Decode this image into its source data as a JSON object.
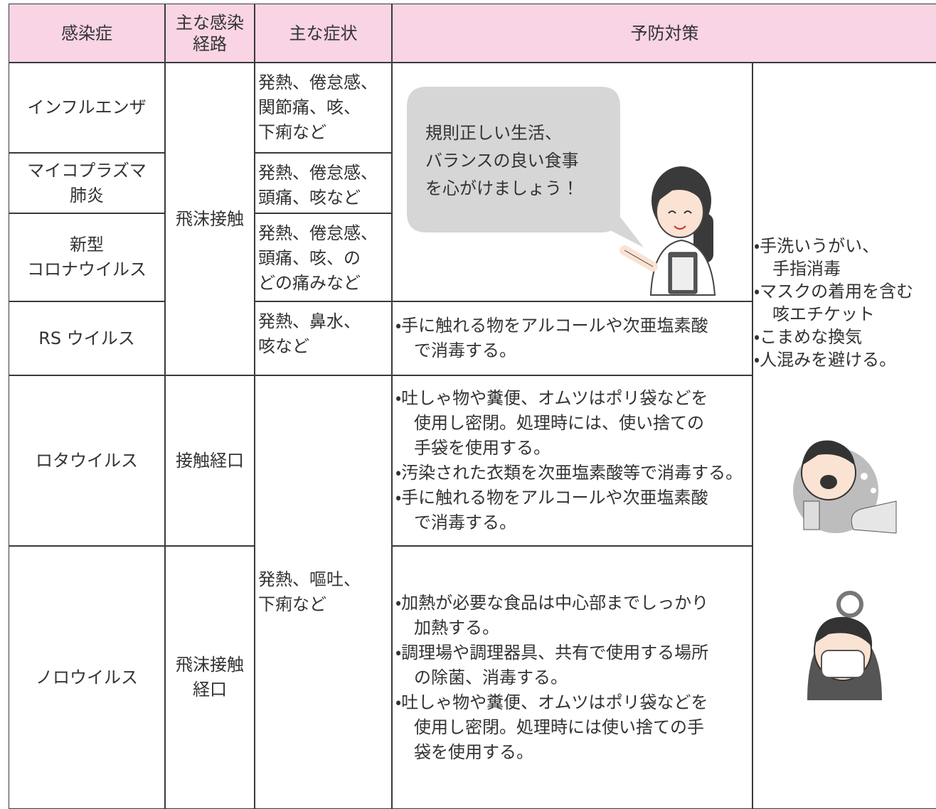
{
  "header": {
    "disease": "感染症",
    "route": [
      "主な感染",
      "経路"
    ],
    "symptoms": "主な症状",
    "prevention": "予防対策"
  },
  "rows": [
    {
      "disease": [
        "インフルエンザ"
      ],
      "symptoms": [
        "発熱、倦怠感、",
        "関節痛、咳、",
        "下痢など"
      ]
    },
    {
      "disease": [
        "マイコプラズマ",
        "肺炎"
      ],
      "symptoms": [
        "発熱、倦怠感、",
        "頭痛、咳など"
      ]
    },
    {
      "disease": [
        "新型",
        "コロナウイルス"
      ],
      "symptoms": [
        "発熱、倦怠感、",
        "頭痛、咳、の",
        "どの痛みなど"
      ]
    },
    {
      "disease": [
        "RS ウイルス"
      ],
      "symptoms": [
        "発熱、鼻水、",
        "咳など"
      ],
      "prevention": [
        [
          "・手に触れる物をアルコールや次亜塩素酸",
          "で消毒する。"
        ]
      ]
    },
    {
      "disease": [
        "ロタウイルス"
      ],
      "prevention": [
        [
          "・吐しゃ物や糞便、オムツはポリ袋などを",
          "使用し密閉。処理時には、使い捨ての",
          "手袋を使用する。"
        ],
        [
          "・汚染された衣類を次亜塩素酸等で消毒する。"
        ],
        [
          "・手に触れる物をアルコールや次亜塩素酸",
          "で消毒する。"
        ]
      ]
    },
    {
      "disease": [
        "ノロウイルス"
      ],
      "prevention": [
        [
          "・加熱が必要な食品は中心部までしっかり",
          "加熱する。"
        ],
        [
          "・調理場や調理器具、共有で使用する場所",
          "の除菌、消毒する。"
        ],
        [
          "・吐しゃ物や糞便、オムツはポリ袋などを",
          "使用し密閉。処理時には使い捨ての手",
          "袋を使用する。"
        ]
      ]
    }
  ],
  "routes": [
    [
      "飛沫接触"
    ],
    [
      "接触経口"
    ],
    [
      "飛沫接触",
      "経口"
    ]
  ],
  "shared_symptoms": [
    "発熱、嘔吐、",
    "下痢など"
  ],
  "bubble": [
    "規則正しい生活、",
    "バランスの良い食事",
    "を心がけましょう！"
  ],
  "common_prevention": [
    [
      "・手洗いうがい、",
      "手指消毒"
    ],
    [
      "・マスクの着用を含む",
      "咳エチケット"
    ],
    [
      "・こまめな換気"
    ],
    [
      "・人混みを避ける。"
    ]
  ]
}
